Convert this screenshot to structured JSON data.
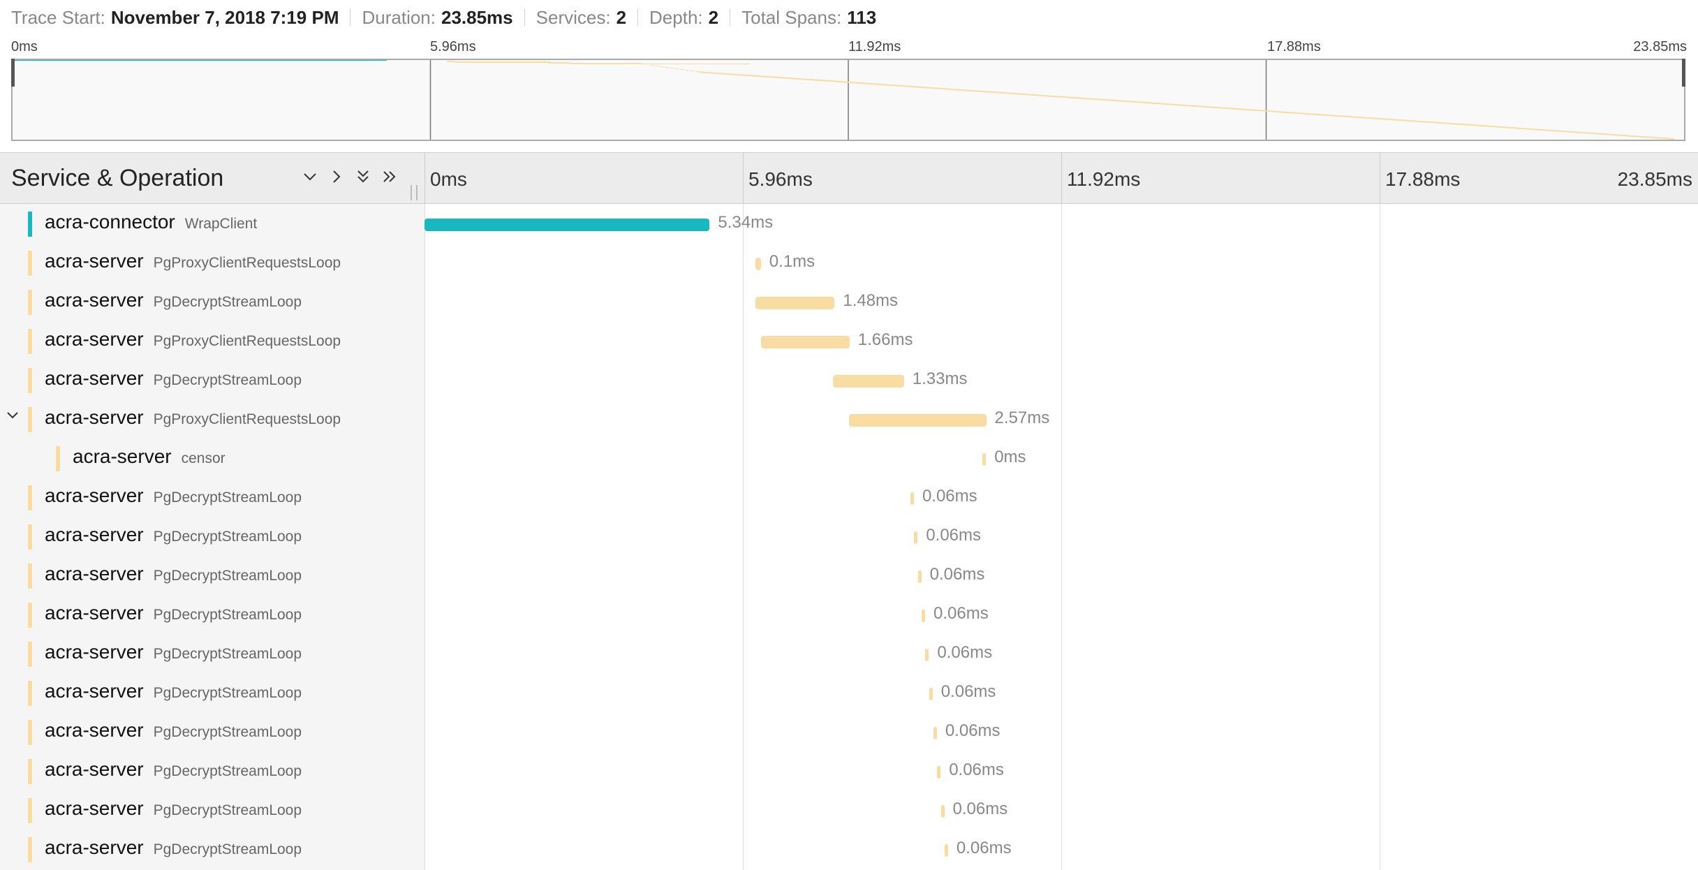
{
  "header": {
    "trace_start_label": "Trace Start:",
    "trace_start_value": "November 7, 2018 7:19 PM",
    "duration_label": "Duration:",
    "duration_value": "23.85ms",
    "services_label": "Services:",
    "services_value": "2",
    "depth_label": "Depth:",
    "depth_value": "2",
    "total_spans_label": "Total Spans:",
    "total_spans_value": "113"
  },
  "minimap": {
    "ticks": [
      "0ms",
      "5.96ms",
      "11.92ms",
      "17.88ms",
      "23.85ms"
    ]
  },
  "timeline": {
    "title": "Service & Operation",
    "ticks": [
      "0ms",
      "5.96ms",
      "11.92ms",
      "17.88ms",
      "23.85ms"
    ],
    "total_ms": 23.85,
    "controls": {
      "collapse_one": "chevron-down-icon",
      "expand_one": "chevron-right-icon",
      "collapse_all": "double-chevron-down-icon",
      "expand_all": "double-chevron-right-icon"
    }
  },
  "colors": {
    "connector": "#17b8be",
    "server": "#f8dca1"
  },
  "spans": [
    {
      "service": "acra-connector",
      "operation": "WrapClient",
      "start_ms": 0.0,
      "duration_ms": 5.34,
      "label": "5.34ms",
      "depth": 0,
      "color": "connector",
      "expanded": null
    },
    {
      "service": "acra-server",
      "operation": "PgProxyClientRequestsLoop",
      "start_ms": 6.2,
      "duration_ms": 0.1,
      "label": "0.1ms",
      "depth": 0,
      "color": "server",
      "expanded": null
    },
    {
      "service": "acra-server",
      "operation": "PgDecryptStreamLoop",
      "start_ms": 6.2,
      "duration_ms": 1.48,
      "label": "1.48ms",
      "depth": 0,
      "color": "server",
      "expanded": null
    },
    {
      "service": "acra-server",
      "operation": "PgProxyClientRequestsLoop",
      "start_ms": 6.3,
      "duration_ms": 1.66,
      "label": "1.66ms",
      "depth": 0,
      "color": "server",
      "expanded": null
    },
    {
      "service": "acra-server",
      "operation": "PgDecryptStreamLoop",
      "start_ms": 7.65,
      "duration_ms": 1.33,
      "label": "1.33ms",
      "depth": 0,
      "color": "server",
      "expanded": null
    },
    {
      "service": "acra-server",
      "operation": "PgProxyClientRequestsLoop",
      "start_ms": 7.95,
      "duration_ms": 2.57,
      "label": "2.57ms",
      "depth": 0,
      "color": "server",
      "expanded": true
    },
    {
      "service": "acra-server",
      "operation": "censor",
      "start_ms": 10.45,
      "duration_ms": 0.0,
      "label": "0ms",
      "depth": 1,
      "color": "server",
      "expanded": null
    },
    {
      "service": "acra-server",
      "operation": "PgDecryptStreamLoop",
      "start_ms": 9.1,
      "duration_ms": 0.06,
      "label": "0.06ms",
      "depth": 0,
      "color": "server",
      "expanded": null
    },
    {
      "service": "acra-server",
      "operation": "PgDecryptStreamLoop",
      "start_ms": 9.17,
      "duration_ms": 0.06,
      "label": "0.06ms",
      "depth": 0,
      "color": "server",
      "expanded": null
    },
    {
      "service": "acra-server",
      "operation": "PgDecryptStreamLoop",
      "start_ms": 9.24,
      "duration_ms": 0.06,
      "label": "0.06ms",
      "depth": 0,
      "color": "server",
      "expanded": null
    },
    {
      "service": "acra-server",
      "operation": "PgDecryptStreamLoop",
      "start_ms": 9.31,
      "duration_ms": 0.06,
      "label": "0.06ms",
      "depth": 0,
      "color": "server",
      "expanded": null
    },
    {
      "service": "acra-server",
      "operation": "PgDecryptStreamLoop",
      "start_ms": 9.38,
      "duration_ms": 0.06,
      "label": "0.06ms",
      "depth": 0,
      "color": "server",
      "expanded": null
    },
    {
      "service": "acra-server",
      "operation": "PgDecryptStreamLoop",
      "start_ms": 9.45,
      "duration_ms": 0.06,
      "label": "0.06ms",
      "depth": 0,
      "color": "server",
      "expanded": null
    },
    {
      "service": "acra-server",
      "operation": "PgDecryptStreamLoop",
      "start_ms": 9.53,
      "duration_ms": 0.06,
      "label": "0.06ms",
      "depth": 0,
      "color": "server",
      "expanded": null
    },
    {
      "service": "acra-server",
      "operation": "PgDecryptStreamLoop",
      "start_ms": 9.6,
      "duration_ms": 0.06,
      "label": "0.06ms",
      "depth": 0,
      "color": "server",
      "expanded": null
    },
    {
      "service": "acra-server",
      "operation": "PgDecryptStreamLoop",
      "start_ms": 9.67,
      "duration_ms": 0.06,
      "label": "0.06ms",
      "depth": 0,
      "color": "server",
      "expanded": null
    },
    {
      "service": "acra-server",
      "operation": "PgDecryptStreamLoop",
      "start_ms": 9.74,
      "duration_ms": 0.06,
      "label": "0.06ms",
      "depth": 0,
      "color": "server",
      "expanded": null
    }
  ]
}
